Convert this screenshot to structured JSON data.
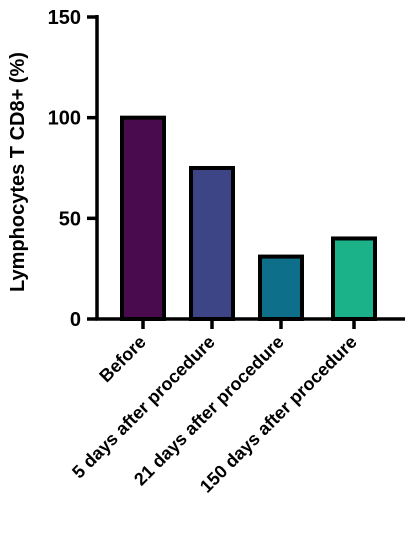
{
  "chart_data": {
    "type": "bar",
    "categories": [
      "Before",
      "5 days after procedure",
      "21 days after procedure",
      "150 days after procedure"
    ],
    "values": [
      100,
      75,
      31,
      40
    ],
    "colors": [
      "#4a0a4e",
      "#3d4587",
      "#0d6f8a",
      "#1bb189"
    ],
    "title": "",
    "xlabel": "",
    "ylabel": "Lymphocytes T CD8+ (%)",
    "ylim": [
      0,
      150
    ],
    "yticks": [
      "0",
      "50",
      "100",
      "150"
    ],
    "grid": false,
    "legend": "none"
  }
}
